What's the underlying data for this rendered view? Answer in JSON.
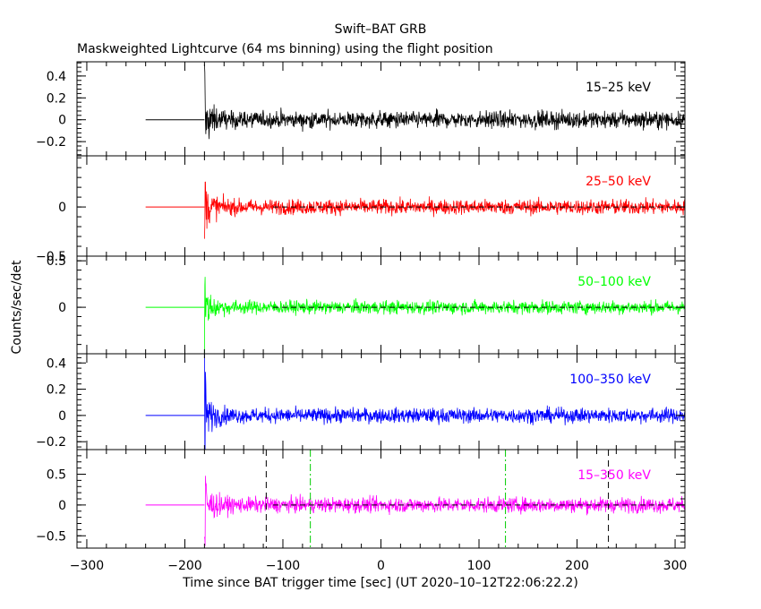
{
  "chart_data": {
    "type": "line",
    "title": "Swift–BAT GRB",
    "subtitle": "Maskweighted Lightcurve (64 ms binning) using the flight position",
    "xlabel": "Time since BAT trigger time [sec] (UT 2020–10–12T22:06:22.2)",
    "ylabel": "Counts/sec/det",
    "xlim": [
      -310,
      310
    ],
    "x_ticks": [
      -300,
      -200,
      -100,
      0,
      100,
      200,
      300
    ],
    "x_tick_labels": [
      "−300",
      "−200",
      "−100",
      "0",
      "100",
      "200",
      "300"
    ],
    "trigger_time": -180,
    "data_start": -240,
    "data_end": 310,
    "panels": [
      {
        "name": "15–25 keV",
        "color": "#000000",
        "ylim": [
          -0.33,
          0.53
        ],
        "yticks": [
          -0.2,
          0,
          0.2,
          0.4
        ],
        "ytick_labels": [
          "−0.2",
          "0",
          "0.2",
          "0.4"
        ],
        "peak": 0.38,
        "noise": 0.075,
        "dashed_zero": false
      },
      {
        "name": "25–50 keV",
        "color": "#ff0000",
        "ylim": [
          -0.5,
          0.52
        ],
        "yticks": [
          -0.5,
          0
        ],
        "ytick_labels": [
          "−0.5",
          "0"
        ],
        "peak": 0.35,
        "noise": 0.075,
        "dashed_zero": true
      },
      {
        "name": "50–100 keV",
        "color": "#00ff00",
        "ylim": [
          -0.5,
          0.55
        ],
        "yticks": [
          0,
          0.5
        ],
        "ytick_labels": [
          "0",
          "0.5"
        ],
        "peak": 0.5,
        "noise": 0.07,
        "dashed_zero": true
      },
      {
        "name": "100–350 keV",
        "color": "#0000ff",
        "ylim": [
          -0.26,
          0.47
        ],
        "yticks": [
          -0.2,
          0,
          0.2,
          0.4
        ],
        "ytick_labels": [
          "−0.2",
          "0",
          "0.2",
          "0.4"
        ],
        "peak": 0.42,
        "noise": 0.055,
        "dashed_zero": false
      },
      {
        "name": "15–350 keV",
        "color": "#ff00ff",
        "ylim": [
          -0.7,
          0.9
        ],
        "yticks": [
          -0.5,
          0,
          0.5
        ],
        "ytick_labels": [
          "−0.5",
          "0",
          "0.5"
        ],
        "peak": 0.9,
        "noise": 0.12,
        "dashed_zero": true
      }
    ],
    "vertical_lines": [
      {
        "x": -117,
        "color": "#000000",
        "style": "dashed"
      },
      {
        "x": -72,
        "color": "#00cc00",
        "style": "dashdot"
      },
      {
        "x": 127,
        "color": "#00cc00",
        "style": "dashdot"
      },
      {
        "x": 232,
        "color": "#000000",
        "style": "dashed"
      }
    ]
  }
}
